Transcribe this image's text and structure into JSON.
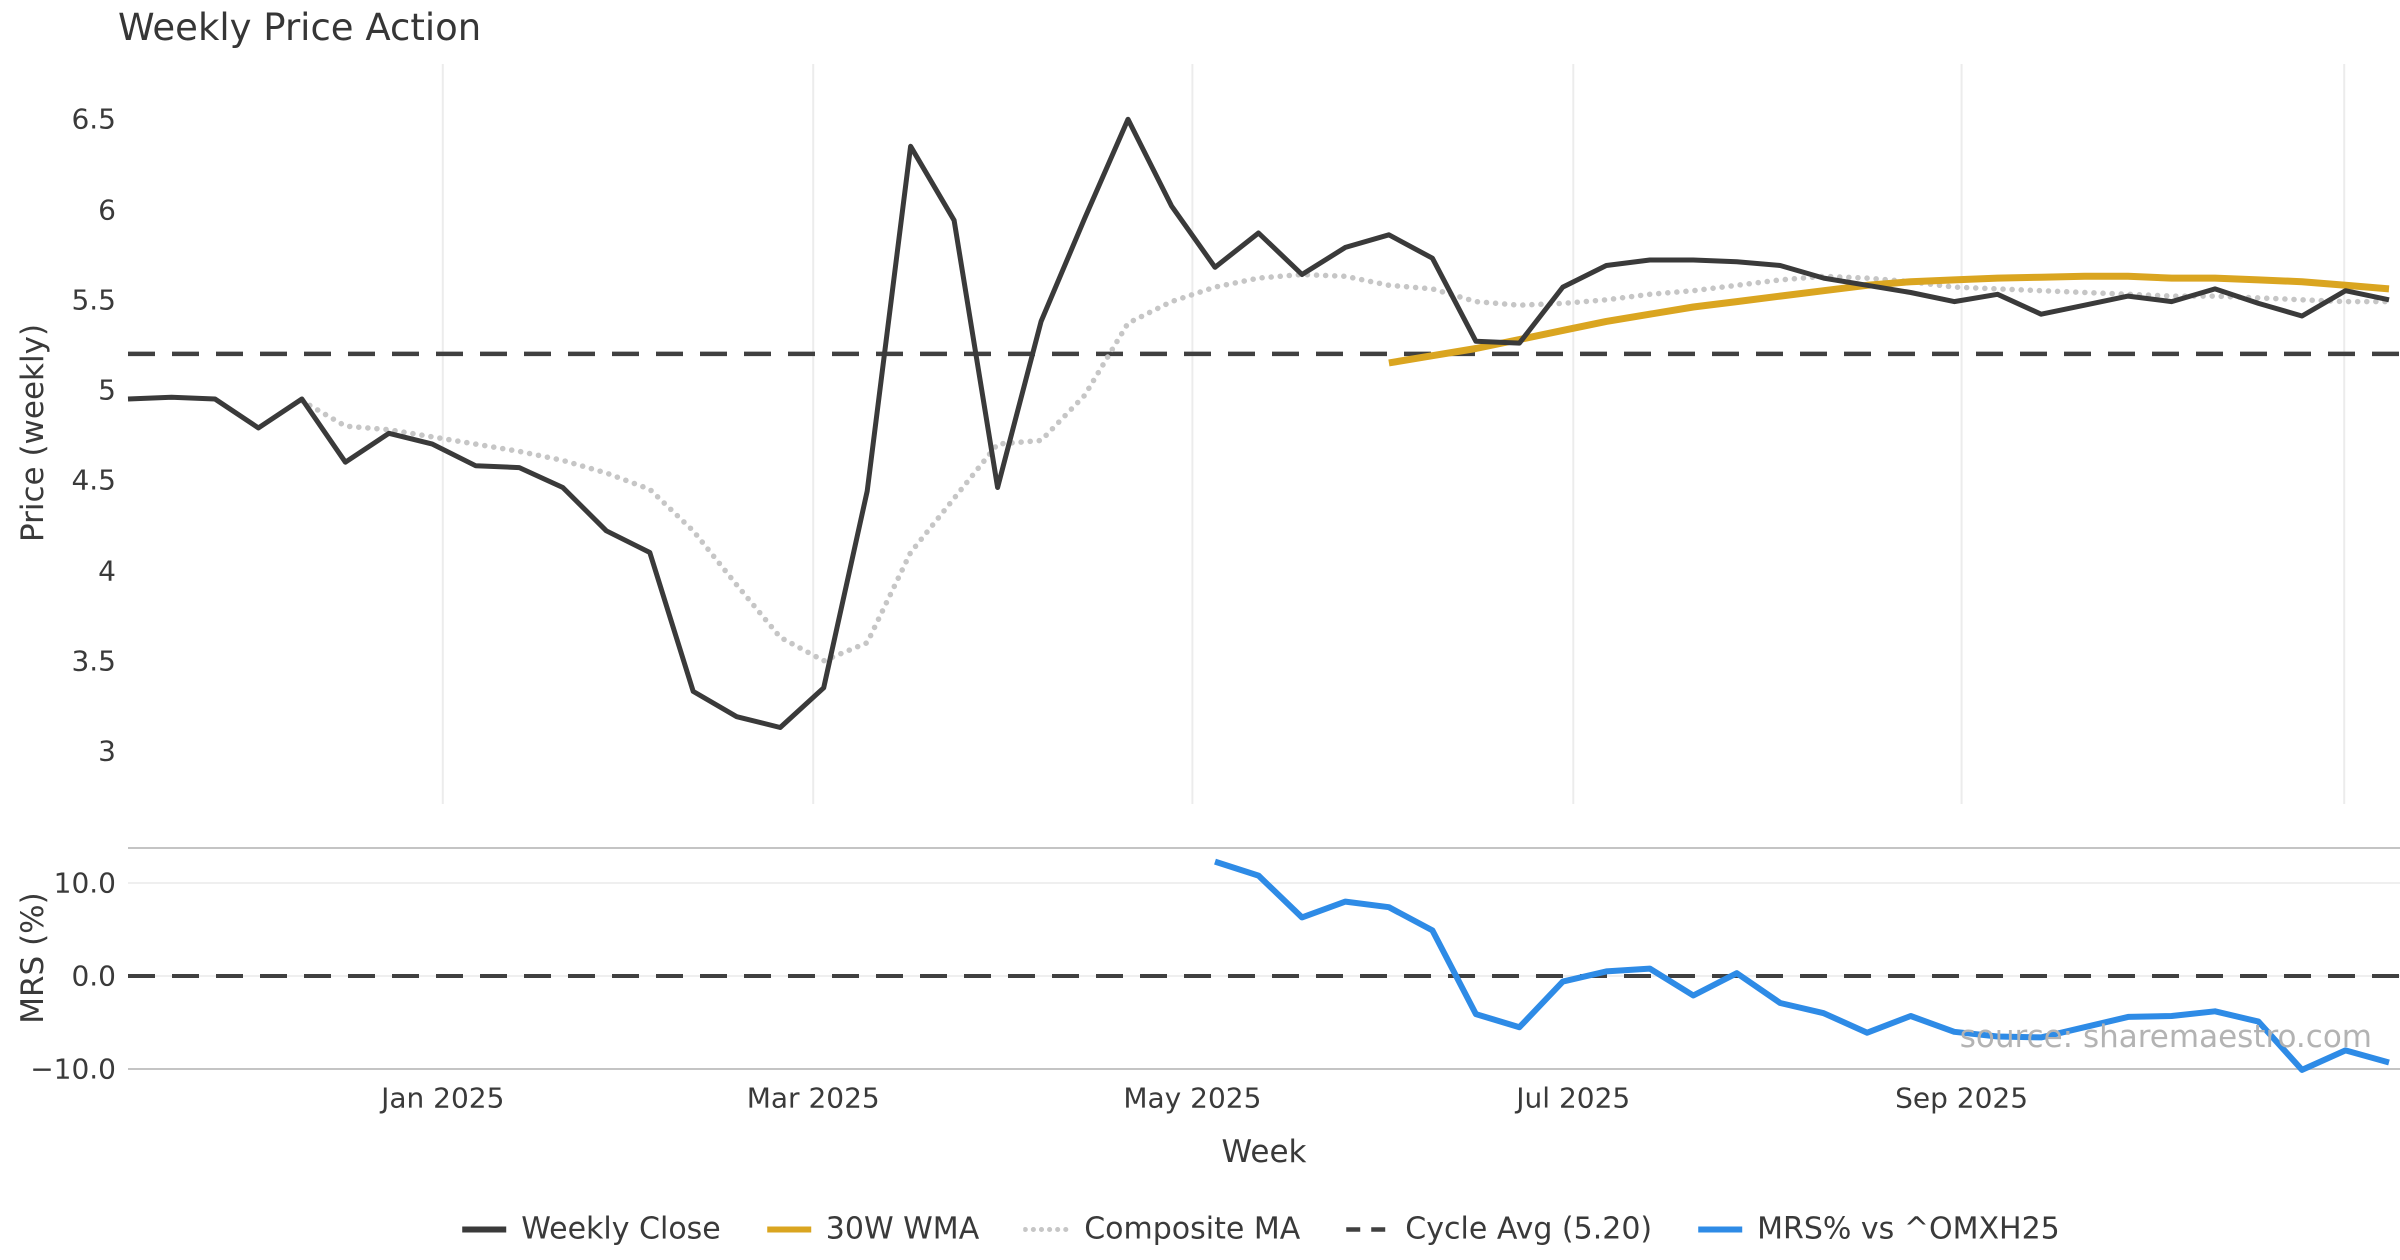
{
  "title": "Weekly Price Action",
  "watermark": "source: sharemaestro.com",
  "colors": {
    "weekly_close": "#3a3a3a",
    "wma30": "#DAA520",
    "composite_ma": "#c6c6c6",
    "cycle_avg": "#404040",
    "mrs": "#2e8be6",
    "grid": "#ececec",
    "spine": "#c4c4c4",
    "text": "#3a3a3a",
    "watermark_text": "#b3b3b3"
  },
  "legend": [
    {
      "label": "Weekly Close",
      "color": "#3a3a3a",
      "style": "solid"
    },
    {
      "label": "30W WMA",
      "color": "#DAA520",
      "style": "solid"
    },
    {
      "label": "Composite MA",
      "color": "#c6c6c6",
      "style": "dotted"
    },
    {
      "label": "Cycle Avg (5.20)",
      "color": "#404040",
      "style": "dashed"
    },
    {
      "label": "MRS% vs ^OMXH25",
      "color": "#2e8be6",
      "style": "solid"
    }
  ],
  "chart_data": {
    "type": "line",
    "title": "Weekly Price Action",
    "xlabel": "Week",
    "x_unit": "week_index_from_first_point",
    "x_axis": {
      "tick_labels": [
        "Jan 2025",
        "Mar 2025",
        "May 2025",
        "Jul 2025",
        "Sep 2025"
      ],
      "tick_weeks": [
        7.24,
        15.76,
        24.48,
        33.24,
        42.17
      ],
      "extra_gridline_weeks": [
        50.97
      ],
      "grid": true
    },
    "panels": [
      {
        "name": "price",
        "ylabel": "Price (weekly)",
        "ytick_labels": [
          "6.5",
          "6",
          "5.5",
          "5",
          "4.5",
          "4",
          "3.5",
          "3"
        ],
        "ytick_values": [
          6.5,
          6,
          5.5,
          5,
          4.5,
          4,
          3.5,
          3
        ],
        "ylim": [
          2.7,
          6.8
        ],
        "grid": "vertical-only",
        "series": [
          {
            "name": "Cycle Avg (5.20)",
            "type": "hline",
            "value": 5.2,
            "color": "#404040",
            "style": "dashed",
            "width": 4.5
          },
          {
            "name": "Composite MA",
            "type": "line",
            "color": "#c6c6c6",
            "style": "dotted",
            "width": 5.5,
            "start_week": 4,
            "values": [
              4.94,
              4.8,
              4.78,
              4.74,
              4.7,
              4.66,
              4.61,
              4.54,
              4.45,
              4.22,
              3.92,
              3.63,
              3.5,
              3.6,
              4.1,
              4.4,
              4.7,
              4.72,
              4.97,
              5.37,
              5.49,
              5.57,
              5.62,
              5.64,
              5.63,
              5.58,
              5.56,
              5.49,
              5.47,
              5.48,
              5.5,
              5.53,
              5.55,
              5.58,
              5.61,
              5.63,
              5.62,
              5.6,
              5.57,
              5.56,
              5.55,
              5.54,
              5.53,
              5.52,
              5.52,
              5.51,
              5.5,
              5.49,
              5.49
            ]
          },
          {
            "name": "30W WMA",
            "type": "line",
            "color": "#DAA520",
            "style": "solid",
            "width": 7,
            "start_week": 29,
            "values": [
              5.15,
              5.19,
              5.23,
              5.28,
              5.33,
              5.38,
              5.42,
              5.46,
              5.49,
              5.52,
              5.55,
              5.58,
              5.6,
              5.61,
              5.62,
              5.625,
              5.63,
              5.63,
              5.62,
              5.62,
              5.61,
              5.6,
              5.58,
              5.56
            ]
          },
          {
            "name": "Weekly Close",
            "type": "line",
            "color": "#3a3a3a",
            "style": "solid",
            "width": 5,
            "start_week": 0,
            "values": [
              4.95,
              4.96,
              4.95,
              4.79,
              4.95,
              4.6,
              4.76,
              4.7,
              4.58,
              4.57,
              4.46,
              4.22,
              4.1,
              3.33,
              3.19,
              3.13,
              3.35,
              4.44,
              6.35,
              5.94,
              4.46,
              5.38,
              5.95,
              6.5,
              6.02,
              5.68,
              5.87,
              5.64,
              5.79,
              5.86,
              5.73,
              5.27,
              5.26,
              5.57,
              5.69,
              5.72,
              5.72,
              5.71,
              5.69,
              5.62,
              5.58,
              5.54,
              5.49,
              5.53,
              5.42,
              5.47,
              5.52,
              5.49,
              5.56,
              5.48,
              5.41,
              5.55,
              5.5
            ]
          }
        ]
      },
      {
        "name": "mrs",
        "ylabel": "MRS (%)",
        "ytick_labels": [
          "10.0",
          "0.0",
          "−10.0"
        ],
        "ytick_values": [
          10,
          0,
          -10
        ],
        "ylim": [
          -10.2,
          13.8
        ],
        "grid": "horizontal-only",
        "series": [
          {
            "name": "zero-line",
            "type": "hline",
            "value": 0,
            "color": "#404040",
            "style": "dashed",
            "width": 4
          },
          {
            "name": "MRS% vs ^OMXH25",
            "type": "line",
            "color": "#2e8be6",
            "style": "solid",
            "width": 6,
            "start_week": 25,
            "values": [
              12.3,
              10.8,
              6.3,
              8.0,
              7.4,
              4.9,
              -4.1,
              -5.5,
              -0.6,
              0.5,
              0.8,
              -2.1,
              0.3,
              -2.9,
              -4.0,
              -6.1,
              -4.3,
              -6.0,
              -6.5,
              -6.6,
              -5.5,
              -4.4,
              -4.3,
              -3.8,
              -4.9,
              -10.1,
              -8.0,
              -9.3
            ]
          }
        ]
      }
    ]
  }
}
